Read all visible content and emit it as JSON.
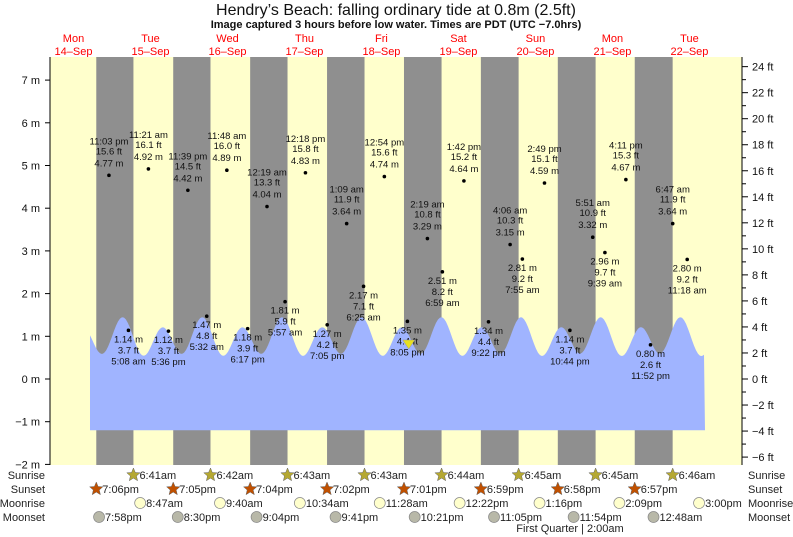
{
  "chart_data": {
    "type": "line",
    "title": "Hendry’s Beach: falling  ordinary tide at 0.8m (2.5ft)",
    "subtitle": "Image captured 3 hours before low water. Times are PDT (UTC −7.0hrs)",
    "y_left": {
      "unit": "m",
      "range": [
        -2,
        7
      ],
      "ticks": [
        7,
        6,
        5,
        4,
        3,
        2,
        1,
        0,
        -1,
        -2
      ]
    },
    "y_right": {
      "unit": "ft",
      "ticks": [
        24,
        22,
        20,
        18,
        16,
        14,
        12,
        10,
        8,
        6,
        4,
        2,
        0,
        -2,
        -4,
        -6
      ]
    },
    "days": [
      {
        "dow": "Mon",
        "date": "14–Sep"
      },
      {
        "dow": "Tue",
        "date": "15–Sep"
      },
      {
        "dow": "Wed",
        "date": "16–Sep"
      },
      {
        "dow": "Thu",
        "date": "17–Sep"
      },
      {
        "dow": "Fri",
        "date": "18–Sep"
      },
      {
        "dow": "Sat",
        "date": "19–Sep"
      },
      {
        "dow": "Sun",
        "date": "20–Sep"
      },
      {
        "dow": "Mon",
        "date": "21–Sep"
      },
      {
        "dow": "Tue",
        "date": "22–Sep"
      }
    ],
    "tides": [
      {
        "day": 0,
        "time": "11:03 pm",
        "m": "4.77 m",
        "ft": "15.6 ft",
        "type": "high"
      },
      {
        "day": 1,
        "time": "5:08 am",
        "m": "1.14 m",
        "ft": "3.7 ft",
        "type": "low"
      },
      {
        "day": 1,
        "time": "11:21 am",
        "m": "4.92 m",
        "ft": "16.1 ft",
        "type": "high"
      },
      {
        "day": 1,
        "time": "5:36 pm",
        "m": "1.12 m",
        "ft": "3.7 ft",
        "type": "low"
      },
      {
        "day": 1,
        "time": "11:39 pm",
        "m": "4.42 m",
        "ft": "14.5 ft",
        "type": "high"
      },
      {
        "day": 2,
        "time": "5:32 am",
        "m": "1.47 m",
        "ft": "4.8 ft",
        "type": "low"
      },
      {
        "day": 2,
        "time": "11:48 am",
        "m": "4.89 m",
        "ft": "16.0 ft",
        "type": "high"
      },
      {
        "day": 2,
        "time": "6:17 pm",
        "m": "1.18 m",
        "ft": "3.9 ft",
        "type": "low"
      },
      {
        "day": 3,
        "time": "12:19 am",
        "m": "4.04 m",
        "ft": "13.3 ft",
        "type": "high"
      },
      {
        "day": 3,
        "time": "5:57 am",
        "m": "1.81 m",
        "ft": "5.9 ft",
        "type": "low"
      },
      {
        "day": 3,
        "time": "12:18 pm",
        "m": "4.83 m",
        "ft": "15.8 ft",
        "type": "high"
      },
      {
        "day": 3,
        "time": "7:05 pm",
        "m": "1.27 m",
        "ft": "4.2 ft",
        "type": "low"
      },
      {
        "day": 4,
        "time": "1:09 am",
        "m": "3.64 m",
        "ft": "11.9 ft",
        "type": "high"
      },
      {
        "day": 4,
        "time": "6:25 am",
        "m": "2.17 m",
        "ft": "7.1 ft",
        "type": "low"
      },
      {
        "day": 4,
        "time": "12:54 pm",
        "m": "4.74 m",
        "ft": "15.6 ft",
        "type": "high"
      },
      {
        "day": 4,
        "time": "8:05 pm",
        "m": "1.35 m",
        "ft": "4.4 ft",
        "type": "low"
      },
      {
        "day": 5,
        "time": "2:19 am",
        "m": "3.29 m",
        "ft": "10.8 ft",
        "type": "high"
      },
      {
        "day": 5,
        "time": "6:59 am",
        "m": "2.51 m",
        "ft": "8.2 ft",
        "type": "low"
      },
      {
        "day": 5,
        "time": "1:42 pm",
        "m": "4.64 m",
        "ft": "15.2 ft",
        "type": "high"
      },
      {
        "day": 5,
        "time": "9:22 pm",
        "m": "1.34 m",
        "ft": "4.4 ft",
        "type": "low"
      },
      {
        "day": 6,
        "time": "4:06 am",
        "m": "3.15 m",
        "ft": "10.3 ft",
        "type": "high"
      },
      {
        "day": 6,
        "time": "7:55 am",
        "m": "2.81 m",
        "ft": "9.2 ft",
        "type": "low"
      },
      {
        "day": 6,
        "time": "2:49 pm",
        "m": "4.59 m",
        "ft": "15.1 ft",
        "type": "high"
      },
      {
        "day": 6,
        "time": "10:44 pm",
        "m": "1.14 m",
        "ft": "3.7 ft",
        "type": "low"
      },
      {
        "day": 7,
        "time": "5:51 am",
        "m": "3.32 m",
        "ft": "10.9 ft",
        "type": "high"
      },
      {
        "day": 7,
        "time": "9:39 am",
        "m": "2.96 m",
        "ft": "9.7 ft",
        "type": "low"
      },
      {
        "day": 7,
        "time": "4:11 pm",
        "m": "4.67 m",
        "ft": "15.3 ft",
        "type": "high"
      },
      {
        "day": 7,
        "time": "11:52 pm",
        "m": "0.80 m",
        "ft": "2.6 ft",
        "type": "low"
      },
      {
        "day": 8,
        "time": "6:47 am",
        "m": "3.64 m",
        "ft": "11.9 ft",
        "type": "high"
      },
      {
        "day": 8,
        "time": "11:18 am",
        "m": "2.80 m",
        "ft": "9.2 ft",
        "type": "low"
      }
    ],
    "current_marker": {
      "day": 4,
      "time": "8:30 pm"
    },
    "rows": {
      "sunrise": {
        "label": "Sunrise",
        "events": [
          {
            "day": 1,
            "time": "6:41am"
          },
          {
            "day": 2,
            "time": "6:42am"
          },
          {
            "day": 3,
            "time": "6:43am"
          },
          {
            "day": 4,
            "time": "6:43am"
          },
          {
            "day": 5,
            "time": "6:44am"
          },
          {
            "day": 6,
            "time": "6:45am"
          },
          {
            "day": 7,
            "time": "6:45am"
          },
          {
            "day": 8,
            "time": "6:46am"
          }
        ]
      },
      "sunset": {
        "label": "Sunset",
        "events": [
          {
            "day": 0,
            "time": "7:06pm"
          },
          {
            "day": 1,
            "time": "7:05pm"
          },
          {
            "day": 2,
            "time": "7:04pm"
          },
          {
            "day": 3,
            "time": "7:02pm"
          },
          {
            "day": 4,
            "time": "7:01pm"
          },
          {
            "day": 5,
            "time": "6:59pm"
          },
          {
            "day": 6,
            "time": "6:58pm"
          },
          {
            "day": 7,
            "time": "6:57pm"
          }
        ]
      },
      "moonrise": {
        "label": "Moonrise",
        "events": [
          {
            "day": 1,
            "time": "8:47am"
          },
          {
            "day": 2,
            "time": "9:40am"
          },
          {
            "day": 3,
            "time": "10:34am"
          },
          {
            "day": 4,
            "time": "11:28am"
          },
          {
            "day": 5,
            "time": "12:22pm"
          },
          {
            "day": 6,
            "time": "1:16pm"
          },
          {
            "day": 7,
            "time": "2:09pm"
          },
          {
            "day": 8,
            "time": "3:00pm"
          }
        ]
      },
      "moonset": {
        "label": "Moonset",
        "events": [
          {
            "day": 0,
            "time": "7:58pm"
          },
          {
            "day": 1,
            "time": "8:30pm"
          },
          {
            "day": 2,
            "time": "9:04pm"
          },
          {
            "day": 3,
            "time": "9:41pm"
          },
          {
            "day": 4,
            "time": "10:21pm"
          },
          {
            "day": 5,
            "time": "11:05pm"
          },
          {
            "day": 6,
            "time": "11:54pm"
          },
          {
            "day": 8,
            "time": "12:48am"
          }
        ]
      }
    },
    "moon_phase": "First Quarter | 2:00am",
    "colors": {
      "day": "#ffffcc",
      "night": "#8f8f8f",
      "water": "#a0b4ff",
      "day_label": "#ff0000",
      "sunrise": "#b5a832",
      "sunset": "#c05000",
      "moonrise": "#ffffcc",
      "moonset": "#b8b8a8"
    }
  }
}
